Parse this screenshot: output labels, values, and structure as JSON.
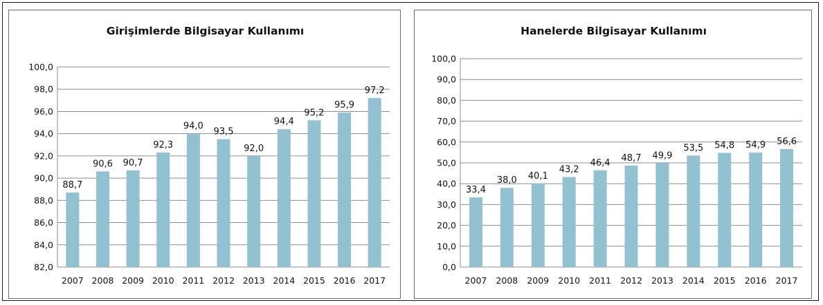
{
  "chart_data": [
    {
      "type": "bar",
      "title": "Girişimlerde Bilgisayar Kullanımı",
      "categories": [
        "2007",
        "2008",
        "2009",
        "2010",
        "2011",
        "2012",
        "2013",
        "2014",
        "2015",
        "2016",
        "2017"
      ],
      "values": [
        88.7,
        90.6,
        90.7,
        92.3,
        94.0,
        93.5,
        92.0,
        94.4,
        95.2,
        95.9,
        97.2
      ],
      "value_labels": [
        "88,7",
        "90,6",
        "90,7",
        "92,3",
        "94,0",
        "93,5",
        "92,0",
        "94,4",
        "95,2",
        "95,9",
        "97,2"
      ],
      "ylim": [
        82,
        100
      ],
      "yticks": [
        82,
        84,
        86,
        88,
        90,
        92,
        94,
        96,
        98,
        100
      ],
      "ytick_labels": [
        "82,0",
        "84,0",
        "86,0",
        "88,0",
        "90,0",
        "92,0",
        "94,0",
        "96,0",
        "98,0",
        "100,0"
      ],
      "grid": true,
      "bar_color": "#92c1d1"
    },
    {
      "type": "bar",
      "title": "Hanelerde Bilgisayar Kullanımı",
      "categories": [
        "2007",
        "2008",
        "2009",
        "2010",
        "2011",
        "2012",
        "2013",
        "2014",
        "2015",
        "2016",
        "2017"
      ],
      "values": [
        33.4,
        38.0,
        40.1,
        43.2,
        46.4,
        48.7,
        49.9,
        53.5,
        54.8,
        54.9,
        56.6
      ],
      "value_labels": [
        "33,4",
        "38,0",
        "40,1",
        "43,2",
        "46,4",
        "48,7",
        "49,9",
        "53,5",
        "54,8",
        "54,9",
        "56,6"
      ],
      "ylim": [
        0,
        100
      ],
      "yticks": [
        0,
        10,
        20,
        30,
        40,
        50,
        60,
        70,
        80,
        90,
        100
      ],
      "ytick_labels": [
        "0,0",
        "10,0",
        "20,0",
        "30,0",
        "40,0",
        "50,0",
        "60,0",
        "70,0",
        "80,0",
        "90,0",
        "100,0"
      ],
      "grid": true,
      "bar_color": "#92c1d1"
    }
  ]
}
